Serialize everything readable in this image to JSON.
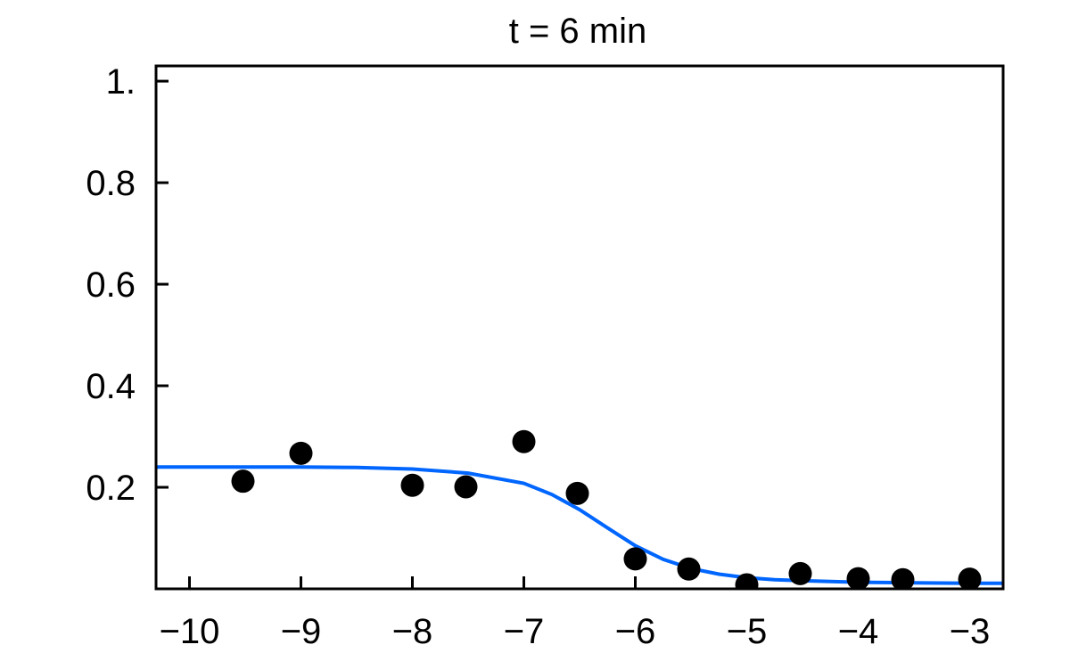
{
  "chart_data": {
    "type": "scatter",
    "title": "t = 6 min",
    "xlabel": "",
    "ylabel": "",
    "xlim": [
      -10.3,
      -2.7
    ],
    "ylim": [
      0.0,
      1.03
    ],
    "x_ticks": [
      -10,
      -9,
      -8,
      -7,
      -6,
      -5,
      -4,
      -3
    ],
    "x_tick_labels": [
      "−10",
      "−9",
      "−8",
      "−7",
      "−6",
      "−5",
      "−4",
      "−3"
    ],
    "y_ticks": [
      0.2,
      0.4,
      0.6,
      0.8,
      1.0
    ],
    "y_tick_labels": [
      "0.2",
      "0.4",
      "0.6",
      "0.8",
      "1."
    ],
    "grid": false,
    "series": [
      {
        "type": "scatter",
        "color": "#000000",
        "x": [
          -9.52,
          -9.0,
          -8.0,
          -7.52,
          -7.0,
          -6.52,
          -6.0,
          -5.52,
          -5.0,
          -4.52,
          -4.0,
          -3.6,
          -3.0
        ],
        "y": [
          0.212,
          0.267,
          0.204,
          0.201,
          0.29,
          0.188,
          0.059,
          0.039,
          0.008,
          0.03,
          0.02,
          0.018,
          0.019
        ]
      },
      {
        "type": "line",
        "color": "#0066ff",
        "x": [
          -10.3,
          -10.0,
          -9.5,
          -9.0,
          -8.5,
          -8.0,
          -7.5,
          -7.0,
          -6.75,
          -6.5,
          -6.25,
          -6.0,
          -5.75,
          -5.5,
          -5.25,
          -5.0,
          -4.75,
          -4.5,
          -4.0,
          -3.5,
          -3.0,
          -2.7
        ],
        "y": [
          0.24,
          0.24,
          0.24,
          0.24,
          0.239,
          0.236,
          0.228,
          0.208,
          0.186,
          0.156,
          0.12,
          0.085,
          0.058,
          0.04,
          0.029,
          0.022,
          0.018,
          0.016,
          0.013,
          0.012,
          0.011,
          0.011
        ]
      }
    ]
  }
}
